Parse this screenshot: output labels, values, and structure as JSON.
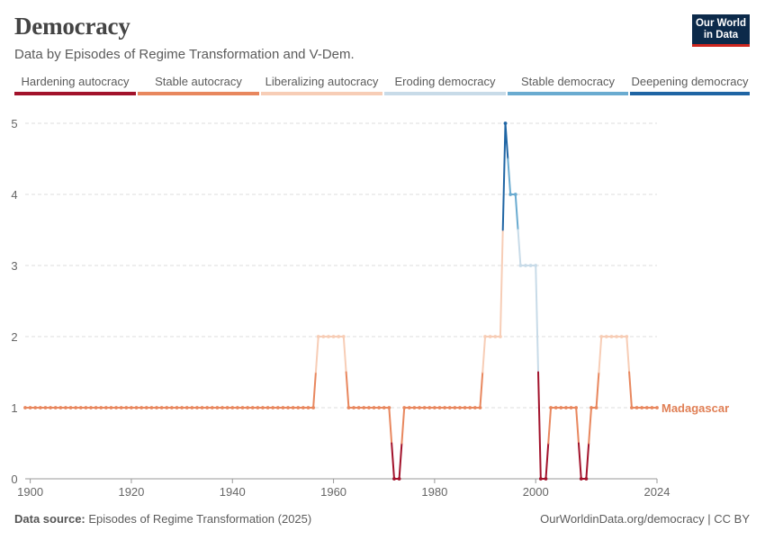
{
  "header": {
    "title": "Democracy",
    "subtitle": "Data by Episodes of Regime Transformation and V-Dem."
  },
  "logo": {
    "line1": "Our World",
    "line2": "in Data"
  },
  "footer": {
    "source_label": "Data source:",
    "source_text": "Episodes of Regime Transformation (2025)",
    "url": "OurWorldinData.org/democracy | CC BY"
  },
  "colors": {
    "hardening": "#a2122b",
    "stable_autocracy": "#e8875e",
    "liberalizing": "#f7cdb6",
    "eroding": "#c8dbe8",
    "stable_democracy": "#6aabd0",
    "deepening": "#1f65a4",
    "grid": "#dddddd",
    "label": "#e07f55"
  },
  "chart_data": {
    "type": "line",
    "title": "Democracy",
    "xlabel": "",
    "ylabel": "",
    "xlim": [
      1899,
      2024
    ],
    "ylim": [
      0,
      5
    ],
    "x_ticks": [
      1900,
      1920,
      1940,
      1960,
      1980,
      2000,
      2024
    ],
    "y_ticks": [
      0,
      1,
      2,
      3,
      4,
      5
    ],
    "grid": true,
    "legend_position": "top",
    "legend": [
      {
        "label": "Hardening autocracy",
        "value": 0
      },
      {
        "label": "Stable autocracy",
        "value": 1
      },
      {
        "label": "Liberalizing autocracy",
        "value": 2
      },
      {
        "label": "Eroding democracy",
        "value": 3
      },
      {
        "label": "Stable democracy",
        "value": 4
      },
      {
        "label": "Deepening democracy",
        "value": 5
      }
    ],
    "series": [
      {
        "name": "Madagascar",
        "runs": [
          {
            "start": 1899,
            "end": 1956,
            "value": 1
          },
          {
            "start": 1957,
            "end": 1962,
            "value": 2
          },
          {
            "start": 1963,
            "end": 1971,
            "value": 1
          },
          {
            "start": 1972,
            "end": 1973,
            "value": 0
          },
          {
            "start": 1974,
            "end": 1989,
            "value": 1
          },
          {
            "start": 1990,
            "end": 1993,
            "value": 2
          },
          {
            "start": 1994,
            "end": 1994,
            "value": 5
          },
          {
            "start": 1995,
            "end": 1996,
            "value": 4
          },
          {
            "start": 1997,
            "end": 2000,
            "value": 3
          },
          {
            "start": 2001,
            "end": 2002,
            "value": 0
          },
          {
            "start": 2003,
            "end": 2008,
            "value": 1
          },
          {
            "start": 2009,
            "end": 2010,
            "value": 0
          },
          {
            "start": 2011,
            "end": 2012,
            "value": 1
          },
          {
            "start": 2013,
            "end": 2018,
            "value": 2
          },
          {
            "start": 2019,
            "end": 2024,
            "value": 1
          }
        ]
      }
    ]
  }
}
